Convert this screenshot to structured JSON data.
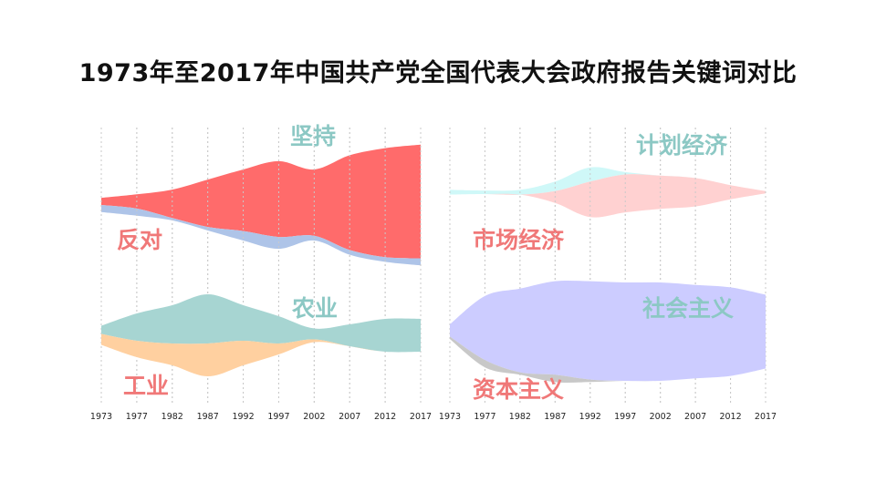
{
  "title": "1973年至2017年中国共产党全国代表大会政府报告关键词对比",
  "chart_data": [
    {
      "type": "area",
      "subtype": "streamgraph",
      "x": [
        "1973",
        "1977",
        "1982",
        "1987",
        "1992",
        "1997",
        "2002",
        "2007",
        "2012",
        "2017"
      ],
      "series": [
        {
          "name": "坚持",
          "color": "#ff6b6b",
          "values": [
            3,
            6,
            12,
            20,
            26,
            32,
            28,
            40,
            46,
            48
          ]
        },
        {
          "name": "反对",
          "color": "#aec4e8",
          "values": [
            3,
            3,
            1,
            1.5,
            4,
            5,
            2,
            2,
            2,
            3
          ]
        }
      ]
    },
    {
      "type": "area",
      "subtype": "streamgraph",
      "x": [
        "1973",
        "1977",
        "1982",
        "1987",
        "1992",
        "1997",
        "2002",
        "2007",
        "2012",
        "2017"
      ],
      "series": [
        {
          "name": "计划经济",
          "color": "#cff8f8",
          "values": [
            2,
            1.5,
            2,
            4,
            6,
            1,
            0,
            0,
            0,
            0
          ]
        },
        {
          "name": "市场经济",
          "color": "#ffd1d1",
          "values": [
            0,
            0,
            0,
            5,
            15,
            16,
            14,
            12,
            6,
            1
          ]
        }
      ]
    },
    {
      "type": "area",
      "subtype": "streamgraph",
      "x": [
        "1973",
        "1977",
        "1982",
        "1987",
        "1992",
        "1997",
        "2002",
        "2007",
        "2012",
        "2017"
      ],
      "series": [
        {
          "name": "农业",
          "color": "#a7d5d2",
          "values": [
            3,
            10,
            14,
            18,
            13,
            10,
            4,
            8,
            12,
            12
          ]
        },
        {
          "name": "工业",
          "color": "#ffd0a0",
          "values": [
            4,
            6,
            8,
            12,
            9,
            4,
            1,
            0,
            0,
            0
          ]
        }
      ]
    },
    {
      "type": "area",
      "subtype": "streamgraph",
      "x": [
        "1973",
        "1977",
        "1982",
        "1987",
        "1992",
        "1997",
        "2002",
        "2007",
        "2012",
        "2017"
      ],
      "series": [
        {
          "name": "社会主义",
          "color": "#ccccff",
          "values": [
            5,
            26,
            34,
            38,
            40,
            40,
            40,
            38,
            36,
            30
          ]
        },
        {
          "name": "资本主义",
          "color": "#c8c8c8",
          "values": [
            1,
            3,
            1,
            3,
            1,
            0,
            0,
            0,
            0,
            0
          ]
        }
      ]
    }
  ]
}
